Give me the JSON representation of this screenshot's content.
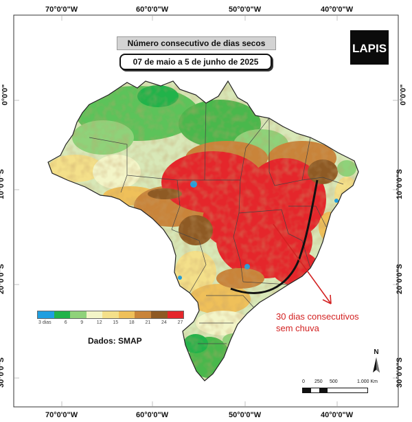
{
  "title": "Número consecutivo de dias secos",
  "subtitle": "07 de maio a 5 de junho de 2025",
  "logo_text": "LAPIS",
  "source": "Dados: SMAP",
  "annotation_line1": "30 dias consecutivos",
  "annotation_line2": "sem chuva",
  "annotation_color": "#d32222",
  "longitude_labels": [
    "70°0'0\"W",
    "60°0'0\"W",
    "50°0'0\"W",
    "40°0'0\"W"
  ],
  "latitude_labels": [
    "0°0'0\"",
    "10°0'0\"S",
    "20°0'0\"S",
    "30°0'0\"S"
  ],
  "legend": {
    "unit_label": "dias",
    "ticks": [
      "3",
      "6",
      "9",
      "12",
      "15",
      "18",
      "21",
      "24",
      "27"
    ],
    "colors": [
      "#1f9fe0",
      "#21b34a",
      "#8fd27a",
      "#f3f5c8",
      "#f4e08a",
      "#efc05a",
      "#c9843a",
      "#8e5a24",
      "#e5262b"
    ]
  },
  "scale_bar": {
    "labels": [
      "0",
      "250",
      "500",
      "1.000 Km"
    ]
  },
  "north_label": "N"
}
